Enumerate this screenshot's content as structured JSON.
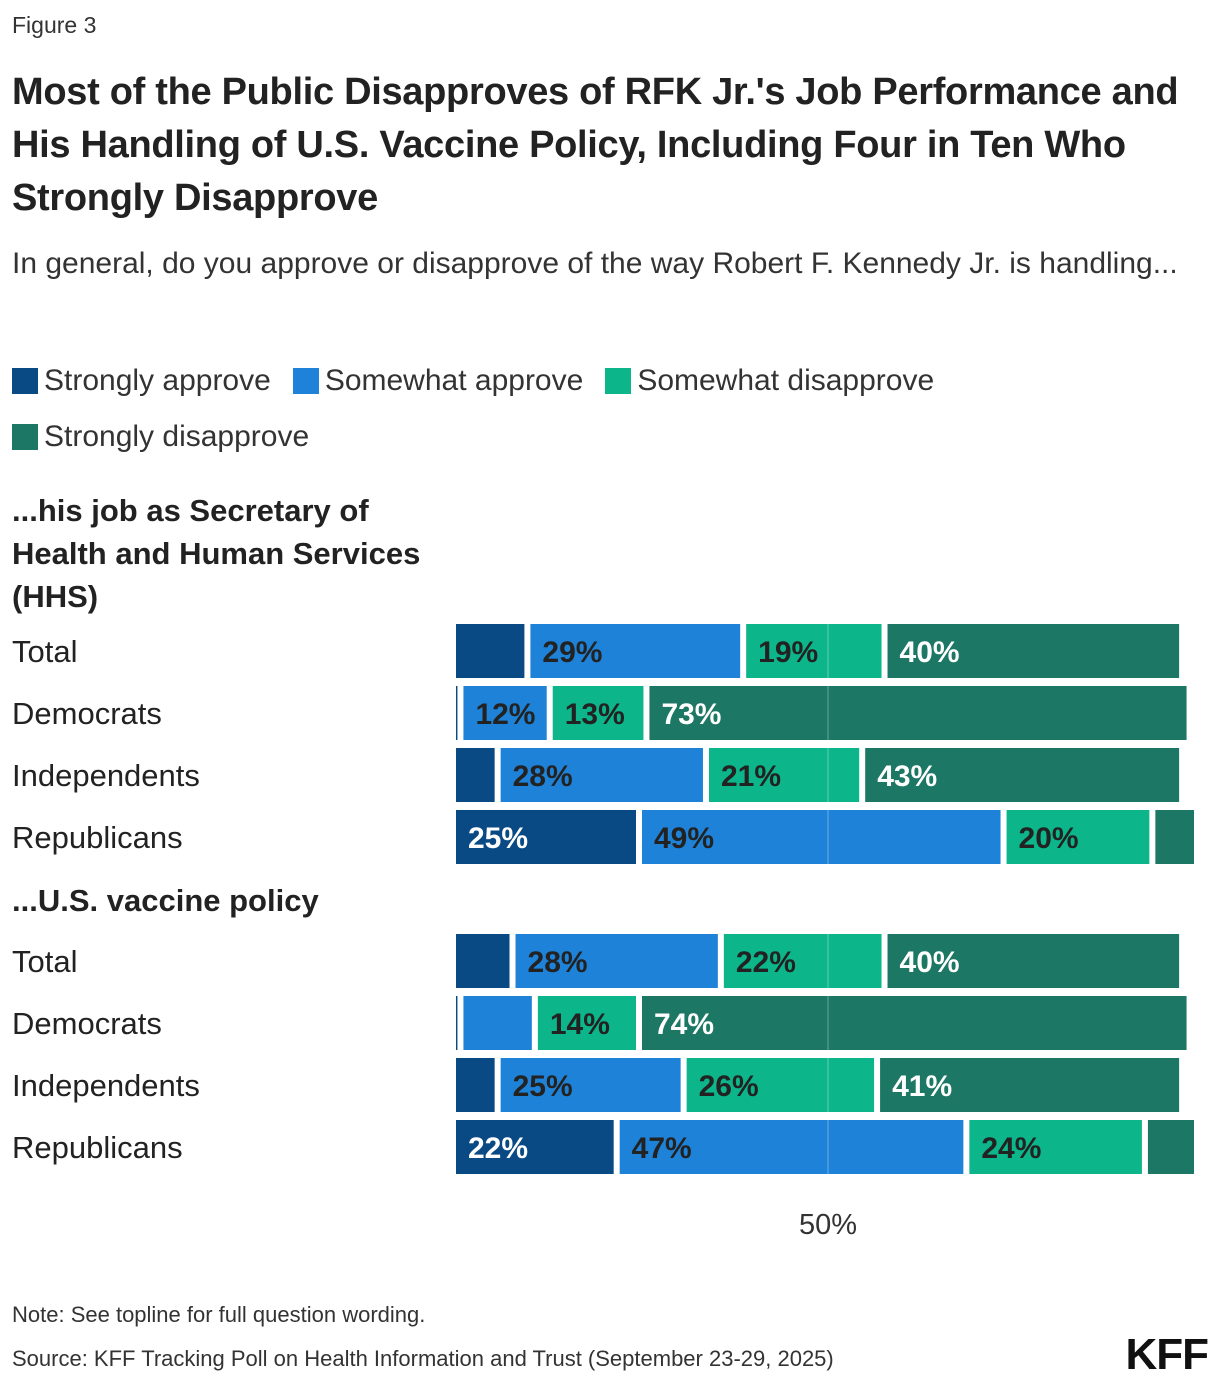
{
  "figure_label": "Figure 3",
  "title": "Most of the Public Disapproves of RFK Jr.'s Job Performance and His Handling of U.S. Vaccine Policy, Including Four in Ten Who Strongly Disapprove",
  "subtitle": "In general, do you approve or disapprove of the way Robert F. Kennedy Jr. is handling...",
  "legend": [
    {
      "label": "Strongly approve",
      "color": "#0a4a84"
    },
    {
      "label": "Somewhat approve",
      "color": "#1e83d8"
    },
    {
      "label": "Somewhat disapprove",
      "color": "#0cb68a"
    },
    {
      "label": "Strongly disapprove",
      "color": "#1c7764"
    }
  ],
  "chart_data": {
    "type": "bar",
    "orientation": "horizontal",
    "stacked": true,
    "xlim": [
      0,
      100
    ],
    "x_tick_labels": [
      "50%"
    ],
    "label_min_value": 12,
    "label_text_colors": [
      "#ffffff",
      "#222222",
      "#222222",
      "#ffffff"
    ],
    "segment_names": [
      "Strongly approve",
      "Somewhat approve",
      "Somewhat disapprove",
      "Strongly disapprove"
    ],
    "colors": [
      "#0a4a84",
      "#1e83d8",
      "#0cb68a",
      "#1c7764"
    ],
    "groups": [
      {
        "heading": "...his job as Secretary of Health and Human Services (HHS)",
        "rows": [
          {
            "label": "Total",
            "values": [
              10,
              29,
              19,
              40
            ]
          },
          {
            "label": "Democrats",
            "values": [
              1,
              12,
              13,
              73
            ]
          },
          {
            "label": "Independents",
            "values": [
              6,
              28,
              21,
              43
            ]
          },
          {
            "label": "Republicans",
            "values": [
              25,
              49,
              20,
              6
            ]
          }
        ]
      },
      {
        "heading": "...U.S. vaccine policy",
        "rows": [
          {
            "label": "Total",
            "values": [
              8,
              28,
              22,
              40
            ]
          },
          {
            "label": "Democrats",
            "values": [
              1,
              10,
              14,
              74
            ]
          },
          {
            "label": "Independents",
            "values": [
              6,
              25,
              26,
              41
            ]
          },
          {
            "label": "Republicans",
            "values": [
              22,
              47,
              24,
              7
            ]
          }
        ]
      }
    ]
  },
  "note": "Note: See topline for full question wording.",
  "source": "Source: KFF Tracking Poll on Health Information and Trust (September 23-29, 2025)",
  "logo": "KFF"
}
